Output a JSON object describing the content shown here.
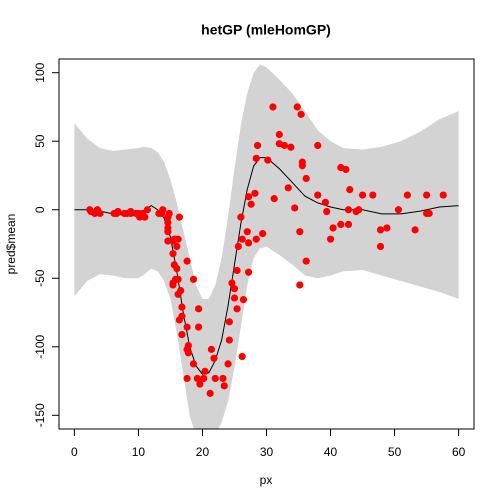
{
  "chart_data": {
    "type": "scatter",
    "title": "hetGP (mleHomGP)",
    "x_label": "px",
    "y_label": "pred$mean",
    "xlim": [
      -2.4,
      62.4
    ],
    "ylim": [
      -160,
      110
    ],
    "xticks": [
      0,
      10,
      20,
      30,
      40,
      50,
      60
    ],
    "yticks": [
      -150,
      -100,
      -50,
      0,
      50,
      100
    ],
    "point_color": "#ff0000",
    "line_color": "#000000",
    "band_color": "#d3d3d3",
    "points": {
      "x": [
        2.4,
        2.6,
        3.2,
        3.6,
        4.0,
        6.2,
        6.6,
        6.8,
        7.8,
        8.2,
        8.8,
        8.8,
        9.6,
        10.0,
        10.2,
        10.6,
        11.0,
        11.4,
        13.2,
        13.6,
        13.8,
        14.6,
        14.6,
        14.6,
        14.6,
        14.6,
        14.6,
        14.8,
        15.4,
        15.4,
        15.4,
        15.4,
        15.6,
        15.6,
        15.8,
        15.8,
        16.0,
        16.0,
        16.2,
        16.2,
        16.2,
        16.4,
        16.4,
        16.6,
        16.8,
        16.8,
        16.8,
        17.6,
        17.6,
        17.6,
        17.6,
        17.8,
        17.8,
        18.6,
        18.6,
        19.2,
        19.4,
        19.4,
        19.6,
        20.2,
        20.4,
        21.2,
        21.4,
        21.8,
        22.0,
        23.2,
        23.4,
        24.0,
        24.2,
        24.2,
        24.6,
        25.0,
        25.0,
        25.4,
        25.4,
        25.6,
        26.0,
        26.2,
        26.2,
        26.4,
        27.0,
        27.2,
        27.2,
        27.2,
        27.6,
        28.2,
        28.4,
        28.4,
        28.6,
        29.4,
        30.2,
        31.0,
        31.2,
        32.0,
        32.0,
        32.8,
        33.4,
        33.8,
        34.4,
        34.8,
        35.2,
        35.2,
        35.4,
        35.6,
        35.6,
        36.2,
        36.2,
        38.0,
        38.0,
        39.2,
        39.4,
        40.0,
        40.4,
        41.6,
        41.6,
        42.4,
        42.8,
        42.8,
        43.0,
        44.0,
        44.4,
        45.0,
        46.6,
        47.8,
        47.8,
        48.8,
        50.6,
        52.0,
        53.2,
        55.0,
        55.0,
        55.4,
        57.6
      ],
      "values": [
        0.0,
        -1.3,
        -2.7,
        0.0,
        -2.7,
        -2.7,
        -2.7,
        -1.3,
        -2.7,
        -2.7,
        -1.3,
        -2.7,
        -2.7,
        -2.7,
        -5.4,
        -2.7,
        -5.4,
        0.0,
        -2.7,
        -2.7,
        0.0,
        -13.3,
        -5.4,
        -5.4,
        -9.3,
        -16.0,
        -22.8,
        -2.7,
        -22.8,
        -32.1,
        -53.5,
        -54.9,
        -40.2,
        -21.5,
        -21.5,
        -50.8,
        -42.9,
        -26.8,
        -21.5,
        -50.8,
        -61.7,
        -5.4,
        -80.4,
        -59.0,
        -71.0,
        -91.1,
        -77.7,
        -37.5,
        -85.6,
        -123.1,
        -101.9,
        -99.1,
        -104.4,
        -112.5,
        -50.8,
        -123.1,
        -85.6,
        -72.3,
        -127.2,
        -123.1,
        -117.9,
        -134.0,
        -101.9,
        -108.4,
        -123.1,
        -123.1,
        -128.5,
        -112.5,
        -95.1,
        -81.8,
        -53.5,
        -64.4,
        -57.6,
        -72.3,
        -44.3,
        -26.8,
        -5.4,
        -107.1,
        -21.5,
        -65.6,
        -16.0,
        -45.6,
        -24.2,
        9.5,
        4.0,
        12.0,
        -21.5,
        37.5,
        46.9,
        -17.4,
        36.2,
        75.0,
        8.1,
        54.9,
        48.2,
        46.9,
        16.0,
        45.6,
        1.3,
        75.0,
        -16.0,
        -54.9,
        69.6,
        34.8,
        32.1,
        -37.5,
        22.8,
        46.9,
        10.7,
        5.4,
        -1.3,
        -21.5,
        -13.3,
        30.8,
        -10.7,
        29.4,
        0.0,
        -10.7,
        14.7,
        -1.3,
        0.0,
        10.7,
        10.7,
        -26.8,
        -14.7,
        -13.3,
        0.0,
        10.7,
        -14.7,
        -2.7,
        10.7,
        -2.7,
        10.7
      ]
    },
    "curve": {
      "x": [
        0,
        2,
        4,
        6,
        8,
        10,
        11,
        12,
        13,
        14,
        15,
        16,
        17,
        18,
        19,
        20,
        21,
        22,
        23,
        24,
        25,
        26,
        27,
        28,
        29,
        30,
        32,
        34,
        36,
        38,
        40,
        42,
        45,
        48,
        51,
        54,
        57,
        60
      ],
      "mean": [
        0,
        0,
        -1,
        -3,
        -4,
        -3,
        0,
        3,
        0,
        -6,
        -20,
        -45,
        -75,
        -100,
        -114,
        -120,
        -119,
        -110,
        -95,
        -70,
        -40,
        -10,
        15,
        32,
        38,
        38,
        30,
        20,
        10,
        5,
        2,
        0,
        0,
        -3,
        -3,
        -1,
        2,
        3
      ],
      "upper": [
        63,
        52,
        45,
        43,
        44,
        45,
        46,
        45,
        42,
        35,
        22,
        5,
        -15,
        -35,
        -55,
        -65,
        -65,
        -55,
        -35,
        -5,
        30,
        62,
        85,
        100,
        106,
        104,
        95,
        85,
        72,
        58,
        50,
        45,
        44,
        46,
        50,
        57,
        66,
        72
      ],
      "lower": [
        -63,
        -52,
        -47,
        -48,
        -50,
        -50,
        -47,
        -43,
        -45,
        -52,
        -65,
        -90,
        -120,
        -150,
        -165,
        -175,
        -175,
        -165,
        -155,
        -140,
        -115,
        -85,
        -55,
        -35,
        -28,
        -27,
        -33,
        -40,
        -48,
        -50,
        -48,
        -45,
        -44,
        -48,
        -52,
        -56,
        -60,
        -65
      ]
    }
  }
}
